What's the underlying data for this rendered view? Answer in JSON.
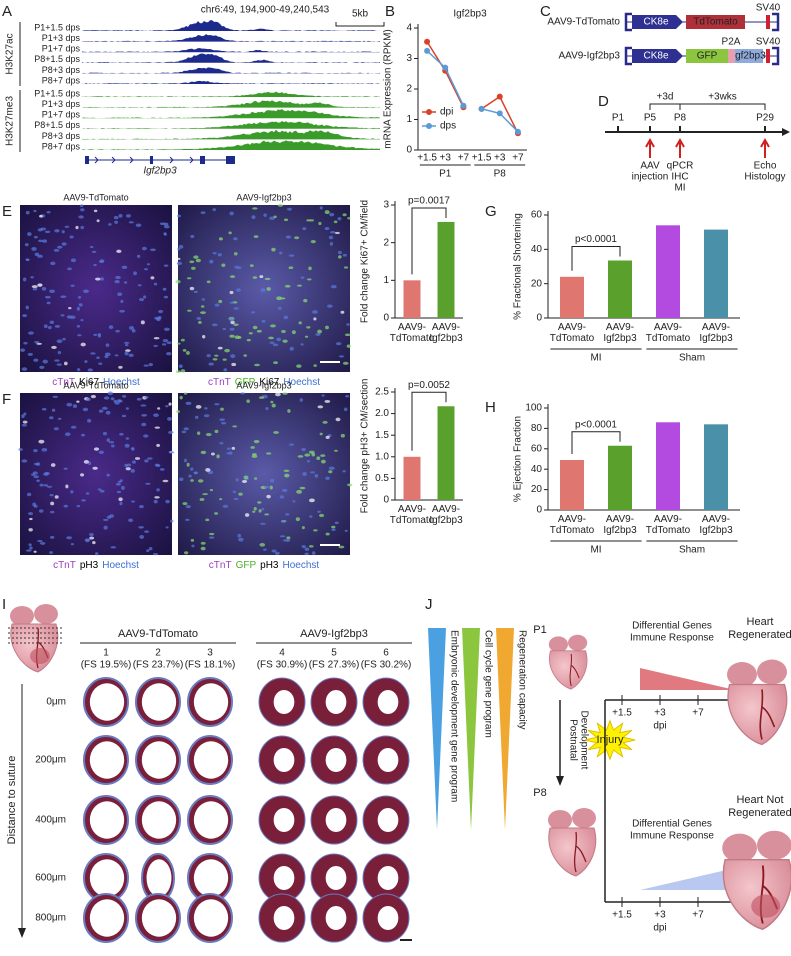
{
  "panel_labels": [
    "A",
    "B",
    "C",
    "D",
    "E",
    "F",
    "G",
    "H",
    "I",
    "J"
  ],
  "panel_a": {
    "locus": "chr6:49, 194,900-49,240,543",
    "scale": "5kb",
    "marks": [
      "H3K27ac",
      "H3K27me3"
    ],
    "tracks_ac": [
      "P1+1.5 dps",
      "P1+3 dps",
      "P1+7 dps",
      "P8+1.5 dps",
      "P8+3 dps",
      "P8+7 dps"
    ],
    "tracks_me3": [
      "P1+1.5 dps",
      "P1+3 dps",
      "P1+7 dps",
      "P8+1.5 dps",
      "P8+3 dps",
      "P8+7 dps"
    ],
    "gene": "Igf2bp3"
  },
  "chart_data": [
    {
      "type": "line",
      "title": "Igf2bp3",
      "y_label": "mRNA Expression (RPKM)",
      "categories": [
        "+1.5",
        "+3",
        "+7",
        "+1.5",
        "+3",
        "+7"
      ],
      "groups": [
        "P1",
        "P8"
      ],
      "series": [
        {
          "name": "dpi",
          "color": "#d9412b",
          "values": [
            3.55,
            2.6,
            1.4,
            1.35,
            1.75,
            0.55
          ]
        },
        {
          "name": "dps",
          "color": "#5b9bd5",
          "values": [
            3.25,
            2.7,
            1.45,
            1.35,
            1.2,
            0.6
          ]
        }
      ],
      "ylim": [
        0,
        4
      ],
      "yticks": [
        0,
        1,
        2,
        3,
        4
      ],
      "legend": "lower left"
    },
    {
      "type": "bar",
      "y_label": "Fold change  Ki67+ CM/field",
      "categories": [
        "AAV9-TdTomato",
        "AAV9-Igf2bp3"
      ],
      "values": [
        1.0,
        2.55
      ],
      "colors": [
        "#e07670",
        "#5aa02c"
      ],
      "ylim": [
        0,
        3
      ],
      "yticks": [
        0,
        1,
        2,
        3
      ],
      "annotation": "p=0.0017"
    },
    {
      "type": "bar",
      "y_label": "Fold change pH3+ CM/section",
      "categories": [
        "AAV9-TdTomato",
        "AAV9-Igf2bp3"
      ],
      "values": [
        1.0,
        2.17
      ],
      "colors": [
        "#e07670",
        "#5aa02c"
      ],
      "ylim": [
        0,
        2.5
      ],
      "yticks": [
        0,
        0.5,
        {
          "value": 1,
          "label": "1.0"
        },
        1.5,
        {
          "value": 2,
          "label": "2.0"
        },
        2.5
      ],
      "annotation": "p=0.0052"
    },
    {
      "type": "bar",
      "y_label": "% Fractional Shortening",
      "categories": [
        "AAV9-TdTomato",
        "AAV9-Igf2bp3",
        "AAV9-TdTomato",
        "AAV9-Igf2bp3"
      ],
      "values": [
        24,
        33.5,
        54,
        51.5
      ],
      "colors": [
        "#e07670",
        "#5aa02c",
        "#b44be0",
        "#4a90a8"
      ],
      "ylim": [
        0,
        60
      ],
      "yticks": [
        0,
        20,
        40,
        60
      ],
      "annotation": "p<0.0001",
      "groups": [
        "MI",
        "Sham"
      ]
    },
    {
      "type": "bar",
      "y_label": "% Ejection Fraction",
      "categories": [
        "AAV9-TdTomato",
        "AAV9-Igf2bp3",
        "AAV9-TdTomato",
        "AAV9-Igf2bp3"
      ],
      "values": [
        49,
        63,
        86,
        84
      ],
      "colors": [
        "#e07670",
        "#5aa02c",
        "#b44be0",
        "#4a90a8"
      ],
      "ylim": [
        0,
        100
      ],
      "yticks": [
        0,
        20,
        40,
        60,
        80,
        100
      ],
      "annotation": "p<0.0001",
      "groups": [
        "MI",
        "Sham"
      ]
    }
  ],
  "panel_c": {
    "constructs": [
      {
        "name": "AAV9-TdTomato",
        "promoter": "CK8e",
        "cassette": [
          "TdTomato"
        ],
        "polyA": "SV40"
      },
      {
        "name": "AAV9-Igf2bp3",
        "promoter": "CK8e",
        "cassette": [
          "GFP",
          "Igf2bp3"
        ],
        "linker": "P2A",
        "polyA": "SV40"
      }
    ]
  },
  "panel_d": {
    "timepoints": [
      "P1",
      "P5",
      "P8",
      "P29"
    ],
    "intervals": [
      "+3d",
      "+3wks"
    ],
    "events": [
      [
        "AAV",
        "injection"
      ],
      [
        "qPCR",
        "IHC",
        "MI"
      ],
      [
        "Echo",
        "Histology"
      ]
    ]
  },
  "panel_e": {
    "images": [
      {
        "title": "AAV9-TdTomato",
        "stain": [
          "cTnT",
          "Ki67",
          "Hoechst"
        ]
      },
      {
        "title": "AAV9-Igf2bp3",
        "stain": [
          "cTnT",
          "GFP",
          "Ki67",
          "Hoechst"
        ]
      }
    ]
  },
  "panel_f": {
    "images": [
      {
        "title": "AAV9-TdTomato",
        "stain": [
          "cTnT",
          "pH3",
          "Hoechst"
        ]
      },
      {
        "title": "AAV9-Igf2bp3",
        "stain": [
          "cTnT",
          "GFP",
          "pH3",
          "Hoechst"
        ]
      }
    ]
  },
  "panel_i": {
    "groups": [
      "AAV9-TdTomato",
      "AAV9-Igf2bp3"
    ],
    "samples": [
      {
        "id": "1",
        "fs": "(FS 19.5%)"
      },
      {
        "id": "2",
        "fs": "(FS 23.7%)"
      },
      {
        "id": "3",
        "fs": "(FS 18.1%)"
      },
      {
        "id": "4",
        "fs": "(FS 30.9%)"
      },
      {
        "id": "5",
        "fs": "(FS 27.3%)"
      },
      {
        "id": "6",
        "fs": "(FS 30.2%)"
      }
    ],
    "depths": [
      "0μm",
      "200μm",
      "400μm",
      "600μm",
      "800μm"
    ],
    "axis_label": "Distance to suture"
  },
  "panel_j": {
    "gradients": [
      "Embryonic development gene program",
      "Cell cycle gene program",
      "Regeneration capacity"
    ],
    "ages": [
      "P1",
      "P8"
    ],
    "transition": [
      "Postnatal",
      "Development"
    ],
    "injury": "Injury",
    "timelines": [
      {
        "label": [
          "Differential Genes",
          "Immune Response"
        ],
        "ticks": [
          "+1.5",
          "+3",
          "+7"
        ],
        "unit": "dpi",
        "outcome": [
          "Heart",
          "Regenerated"
        ]
      },
      {
        "label": [
          "Differential Genes",
          "Immune Response"
        ],
        "ticks": [
          "+1.5",
          "+3",
          "+7"
        ],
        "unit": "dpi",
        "outcome": [
          "Heart Not",
          "Regenerated"
        ]
      }
    ]
  }
}
